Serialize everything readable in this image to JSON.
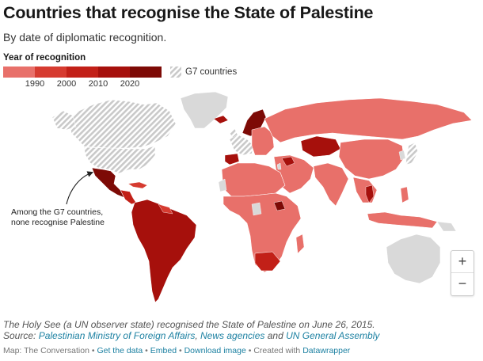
{
  "header": {
    "title": "Countries that recognise the State of Palestine",
    "subtitle": "By date of diplomatic recognition."
  },
  "legend": {
    "title": "Year of recognition",
    "ticks": [
      "1990",
      "2000",
      "2010",
      "2020"
    ],
    "colors": [
      "#e8706a",
      "#d63b30",
      "#c22018",
      "#a6100c",
      "#7d0a06"
    ],
    "g7_label": "G7 countries",
    "g7_pattern_colors": [
      "#d9d9d9",
      "#ffffff"
    ]
  },
  "map": {
    "no_data_color": "#d9d9d9",
    "annotation": [
      "Among the G7 countries,",
      "none recognise Palestine"
    ]
  },
  "zoom": {
    "in": "+",
    "out": "−"
  },
  "notes": {
    "line1": "The Holy See (a UN observer state) recognised the State of Palestine on June 26, 2015.",
    "source_prefix": "Source: ",
    "source_link1": "Palestinian Ministry of Foreign Affairs",
    "source_sep1": ", ",
    "source_link2": "News agencies",
    "source_sep2": " and ",
    "source_link3": "UN General Assembly"
  },
  "credits": {
    "prefix": "Map: The Conversation",
    "sep": " • ",
    "get_data": "Get the data",
    "embed": "Embed",
    "download": "Download image",
    "created_with": "Created with ",
    "datawrapper": "Datawrapper"
  }
}
